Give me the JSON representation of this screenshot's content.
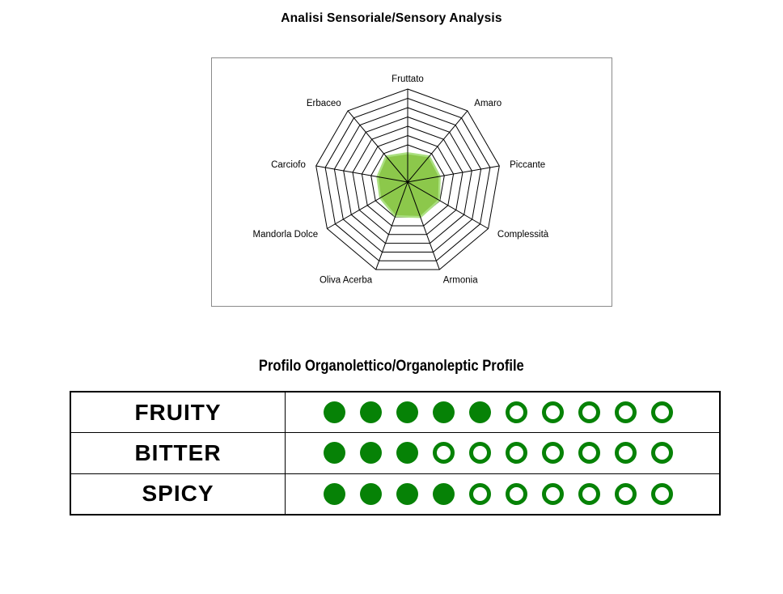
{
  "page": {
    "sensory_title": "Analisi Sensoriale/Sensory Analysis",
    "profile_title": "Profilo Organolettico/Organoleptic Profile"
  },
  "chart_data": [
    {
      "type": "radar",
      "title": "Analisi Sensoriale/Sensory Analysis",
      "axes": [
        "Fruttato",
        "Amaro",
        "Piccante",
        "Complessità",
        "Armonia",
        "Oliva Acerba",
        "Mandorla Dolce",
        "Carciofo",
        "Erbaceo"
      ],
      "values": [
        3.1,
        3.6,
        3.5,
        3.9,
        4.0,
        3.9,
        3.4,
        3.3,
        3.6
      ],
      "scale_max": 10,
      "rings": 10,
      "grid_shape": "nonagon",
      "legend": "none",
      "fill_color": "#8CC84B",
      "stroke_color": "#ABE081",
      "grid_color": "#000000"
    },
    {
      "type": "table",
      "title": "Profilo Organolettico/Organoleptic Profile",
      "max_dots": 10,
      "dot_color": "#068206",
      "rows": [
        {
          "label": "FRUITY",
          "value": 5
        },
        {
          "label": "BITTER",
          "value": 3
        },
        {
          "label": "SPICY",
          "value": 4
        }
      ]
    }
  ]
}
